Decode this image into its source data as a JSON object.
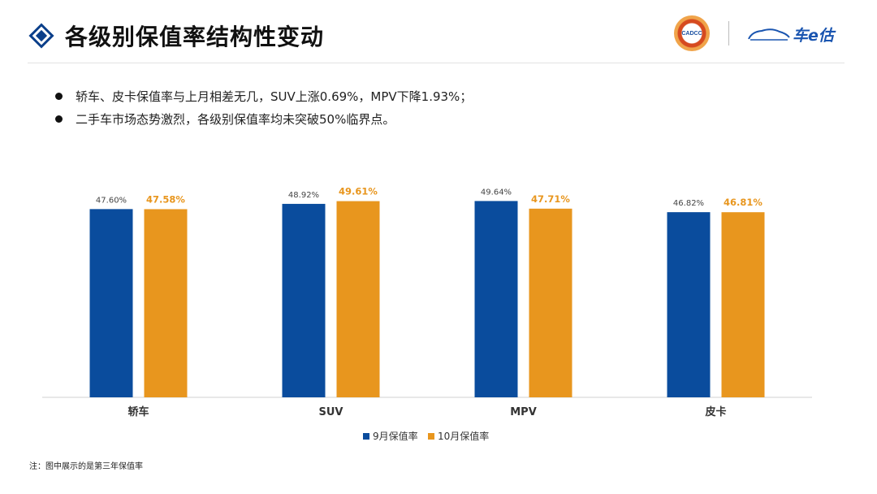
{
  "header": {
    "title": "各级别保值率结构性变动",
    "logo_cadcc_text": "CADCC",
    "logo_brand_text": "车e估"
  },
  "bullets": [
    "轿车、皮卡保值率与上月相差无几，SUV上涨0.69%，MPV下降1.93%；",
    "二手车市场态势激烈，各级别保值率均未突破50%临界点。"
  ],
  "chart_data": {
    "type": "bar",
    "categories": [
      "轿车",
      "SUV",
      "MPV",
      "皮卡"
    ],
    "series": [
      {
        "name": "9月保值率",
        "values": [
          47.6,
          48.92,
          49.64,
          46.82
        ],
        "labels": [
          "47.60%",
          "48.92%",
          "49.64%",
          "46.82%"
        ],
        "color": "#0a4c9d"
      },
      {
        "name": "10月保值率",
        "values": [
          47.58,
          49.61,
          47.71,
          46.81
        ],
        "labels": [
          "47.58%",
          "49.61%",
          "47.71%",
          "46.81%"
        ],
        "color": "#e8961e"
      }
    ],
    "ylim": [
      0,
      56.3
    ],
    "grid": false,
    "legend": "bottom-center"
  },
  "colors": {
    "accent": "#0b3f8a",
    "label_orange": "#e8961e"
  },
  "note": "注：图中展示的是第三年保值率"
}
